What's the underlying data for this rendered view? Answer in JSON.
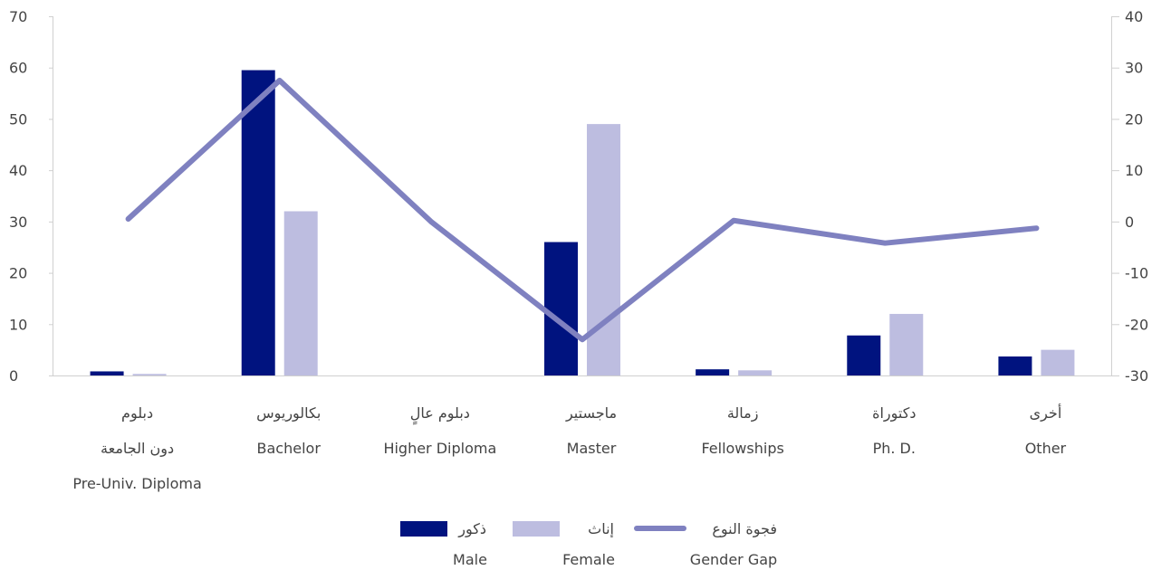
{
  "chart_data": {
    "type": "bar",
    "categories": [
      [
        "دبلوم",
        "دون الجامعة",
        "Pre-Univ. Diploma"
      ],
      [
        "بكالوريوس",
        "Bachelor"
      ],
      [
        "دبلوم عالٍ",
        "Higher Diploma"
      ],
      [
        "ماجستير",
        "Master"
      ],
      [
        "زمالة",
        "Fellowships"
      ],
      [
        "دكتوراة",
        "Ph. D."
      ],
      [
        "أخرى",
        "Other"
      ]
    ],
    "series": [
      {
        "name": "ذكور",
        "name_en": "Male",
        "type": "bar",
        "axis": "left",
        "color": "#00137F",
        "values": [
          0.8,
          59.5,
          0,
          26,
          1.2,
          7.8,
          3.7
        ]
      },
      {
        "name": "إناث",
        "name_en": "Female",
        "type": "bar",
        "axis": "left",
        "color": "#BDBDE0",
        "values": [
          0.3,
          32,
          0,
          49,
          1.0,
          12,
          5.0
        ]
      },
      {
        "name": "فجوة النوع",
        "name_en": "Gender Gap",
        "type": "line",
        "axis": "right",
        "color": "#7F81C0",
        "values": [
          0.5,
          27.5,
          0,
          -23,
          0.2,
          -4.2,
          -1.3
        ]
      }
    ],
    "y_left": {
      "min": 0,
      "max": 70,
      "ticks": [
        0,
        10,
        20,
        30,
        40,
        50,
        60,
        70
      ]
    },
    "y_right": {
      "min": -30,
      "max": 40,
      "ticks": [
        -30,
        -20,
        -10,
        0,
        10,
        20,
        30,
        40
      ]
    },
    "grid": false,
    "legend_position": "bottom"
  }
}
